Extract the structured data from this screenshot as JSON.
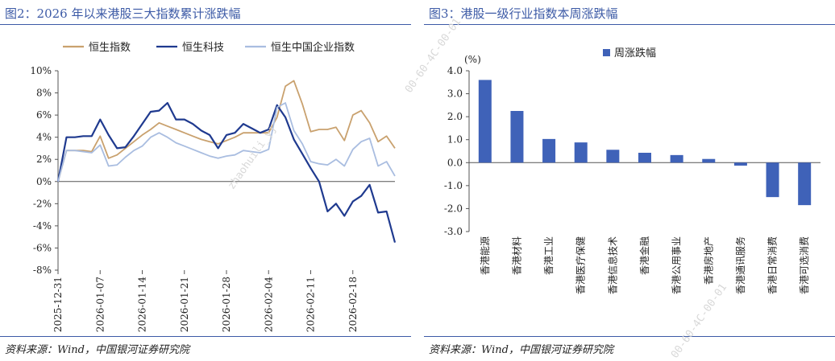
{
  "left_panel": {
    "title": "图2：2026 年以来港股三大指数累计涨跌幅",
    "source": "资料来源：Wind，中国银河证券研究院"
  },
  "right_panel": {
    "title": "图3：港股一级行业指数本周涨跌幅",
    "source": "资料来源：Wind，中国银河证券研究院"
  },
  "watermark": "00-60-4C-00-01",
  "watermark_user": "zhaohuili_yj",
  "colors": {
    "hsi": "#c9a16e",
    "hstech": "#1f3a8f",
    "hscei": "#a9bde0",
    "bar": "#3f62b8",
    "title": "#3c5aa6"
  },
  "chart_data": [
    {
      "type": "line",
      "x_tick_labels": [
        "2025-12-31",
        "2026-01-07",
        "2026-01-14",
        "2026-01-21",
        "2026-01-28",
        "2026-02-04",
        "2026-02-11",
        "2026-02-18"
      ],
      "y_tick_labels": [
        "-8%",
        "-6%",
        "-4%",
        "-2%",
        "0%",
        "2%",
        "4%",
        "6%",
        "8%",
        "10%"
      ],
      "ylim": [
        -8,
        10
      ],
      "y_unit": "%",
      "legend_position": "top",
      "series": [
        {
          "name": "恒生指数",
          "color": "#c9a16e",
          "values": [
            0,
            2.8,
            2.8,
            2.8,
            2.7,
            4.1,
            2.1,
            2.4,
            3.0,
            3.6,
            4.2,
            4.7,
            5.3,
            5.0,
            4.7,
            4.4,
            4.1,
            3.8,
            3.6,
            3.4,
            3.7,
            4.0,
            4.4,
            4.4,
            4.4,
            4.4,
            5.8,
            8.6,
            9.1,
            7.0,
            4.5,
            4.7,
            4.7,
            4.9,
            3.7,
            6.0,
            6.4,
            5.3,
            3.6,
            4.1,
            3.0
          ]
        },
        {
          "name": "恒生科技",
          "color": "#1f3a8f",
          "values": [
            0,
            4.0,
            4.0,
            4.1,
            4.1,
            5.6,
            4.2,
            3.0,
            3.1,
            4.1,
            5.2,
            6.3,
            6.4,
            7.1,
            5.6,
            5.6,
            5.2,
            4.6,
            4.2,
            3.0,
            4.2,
            4.4,
            5.2,
            4.8,
            4.4,
            4.7,
            6.9,
            5.8,
            3.8,
            2.5,
            1.2,
            0.0,
            -2.7,
            -2.0,
            -3.1,
            -1.8,
            -1.3,
            -0.3,
            -2.8,
            -2.7,
            -5.5
          ]
        },
        {
          "name": "恒生中国企业指数",
          "color": "#a9bde0",
          "values": [
            0,
            2.8,
            2.8,
            2.7,
            2.6,
            3.3,
            1.4,
            1.5,
            2.2,
            2.8,
            3.2,
            4.0,
            4.4,
            4.0,
            3.5,
            3.2,
            2.9,
            2.6,
            2.3,
            2.1,
            2.3,
            2.4,
            2.8,
            2.7,
            2.6,
            2.9,
            6.7,
            7.1,
            4.6,
            3.4,
            1.8,
            1.6,
            1.5,
            2.0,
            1.4,
            2.9,
            3.6,
            3.9,
            1.4,
            1.8,
            0.5
          ]
        }
      ]
    },
    {
      "type": "bar",
      "title": "周涨跌幅",
      "y_unit_label": "(%)",
      "ylim": [
        -3.0,
        4.0
      ],
      "y_tick_labels": [
        "4.0",
        "3.0",
        "2.0",
        "1.0",
        "0.0",
        "-1.0",
        "-2.0",
        "-3.0"
      ],
      "legend_position": "top",
      "categories": [
        "香港能源",
        "香港材料",
        "香港工业",
        "香港医疗保健",
        "香港信息技术",
        "香港金融",
        "香港公用事业",
        "香港房地产",
        "香港通讯服务",
        "香港日常消费",
        "香港可选消费"
      ],
      "values": [
        3.6,
        2.25,
        1.03,
        0.88,
        0.56,
        0.43,
        0.33,
        0.16,
        -0.13,
        -1.5,
        -1.85
      ]
    }
  ]
}
